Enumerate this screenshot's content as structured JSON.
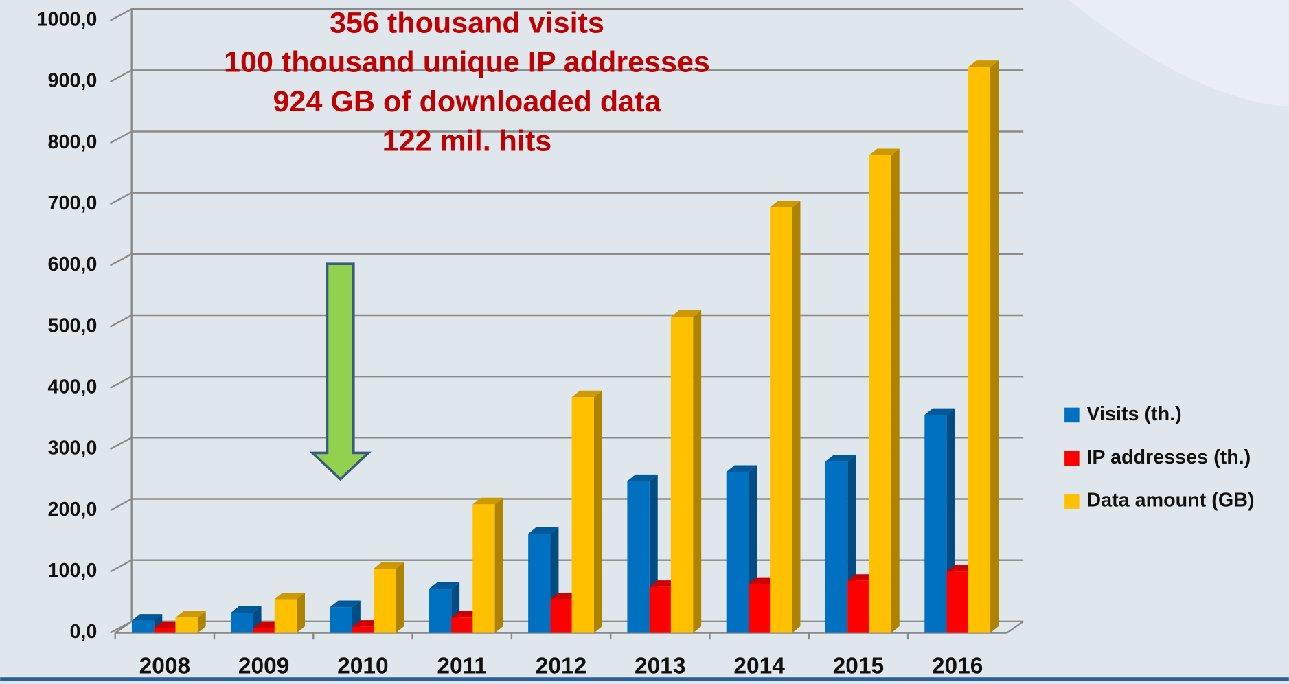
{
  "chart_data": {
    "type": "bar3d",
    "annotations": [
      "356 thousand visits",
      "100 thousand unique IP addresses",
      "924 GB of downloaded data",
      "122 mil. hits"
    ],
    "categories": [
      "2008",
      "2009",
      "2010",
      "2011",
      "2012",
      "2013",
      "2014",
      "2015",
      "2016"
    ],
    "series": [
      {
        "name": "Visits (th.)",
        "color": "#0070c0",
        "values": [
          20,
          33,
          42,
          72,
          162,
          248,
          263,
          280,
          356
        ]
      },
      {
        "name": "IP addresses (th.)",
        "color": "#ff0000",
        "values": [
          8,
          8,
          10,
          25,
          55,
          75,
          80,
          85,
          100
        ]
      },
      {
        "name": "Data amount (GB)",
        "color": "#ffc000",
        "values": [
          25,
          55,
          105,
          210,
          385,
          516,
          695,
          780,
          924
        ]
      }
    ],
    "ylim": [
      0,
      1000
    ],
    "yticks": [
      {
        "value": 0,
        "label": "0,0"
      },
      {
        "value": 100,
        "label": "100,0"
      },
      {
        "value": 200,
        "label": "200,0"
      },
      {
        "value": 300,
        "label": "300,0"
      },
      {
        "value": 400,
        "label": "400,0"
      },
      {
        "value": 500,
        "label": "500,0"
      },
      {
        "value": 600,
        "label": "600,0"
      },
      {
        "value": 700,
        "label": "700,0"
      },
      {
        "value": 800,
        "label": "800,0"
      },
      {
        "value": 900,
        "label": "900,0"
      },
      {
        "value": 1000,
        "label": "1000,0"
      }
    ],
    "grid": true,
    "legend": "right"
  }
}
